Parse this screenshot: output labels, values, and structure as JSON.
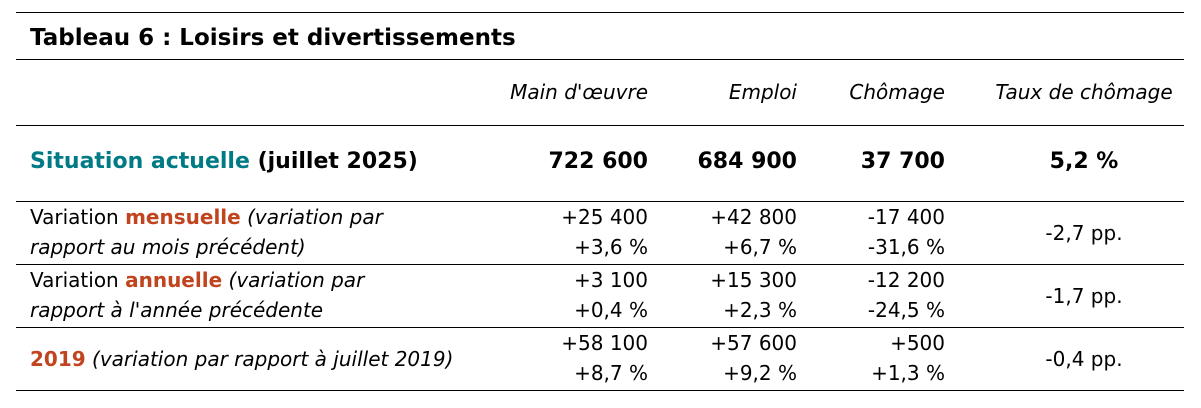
{
  "title": "Tableau 6 : Loisirs et divertissements",
  "headers": {
    "labour_force": "Main d'œuvre",
    "employment": "Emploi",
    "unemployment": "Chômage",
    "rate": "Taux de chômage"
  },
  "current": {
    "label_colored": "Situation actuelle",
    "label_rest": " (juillet 2025)",
    "labour_force": "722 600",
    "employment": "684 900",
    "unemployment": "37 700",
    "rate": "5,2 %"
  },
  "monthly": {
    "prefix": "Variation ",
    "colored": "mensuelle",
    "note_line1": " (variation par",
    "note_line2": "rapport au mois précédent)",
    "labour_force_abs": "+25 400",
    "labour_force_pct": "+3,6 %",
    "employment_abs": "+42 800",
    "employment_pct": "+6,7 %",
    "unemployment_abs": "-17 400",
    "unemployment_pct": "-31,6 %",
    "rate": "-2,7 pp."
  },
  "annual": {
    "prefix": "Variation ",
    "colored": "annuelle",
    "note_line1": " (variation par",
    "note_line2": "rapport à l'année précédente",
    "labour_force_abs": "+3 100",
    "labour_force_pct": "+0,4 %",
    "employment_abs": "+15 300",
    "employment_pct": "+2,3 %",
    "unemployment_abs": "-12 200",
    "unemployment_pct": "-24,5 %",
    "rate": "-1,7 pp."
  },
  "y2019": {
    "colored": "2019",
    "note": " (variation par rapport à juillet 2019)",
    "labour_force_abs": "+58 100",
    "labour_force_pct": "+8,7 %",
    "employment_abs": "+57 600",
    "employment_pct": "+9,2 %",
    "unemployment_abs": "+500",
    "unemployment_pct": "+1,3 %",
    "rate": "-0,4 pp."
  }
}
